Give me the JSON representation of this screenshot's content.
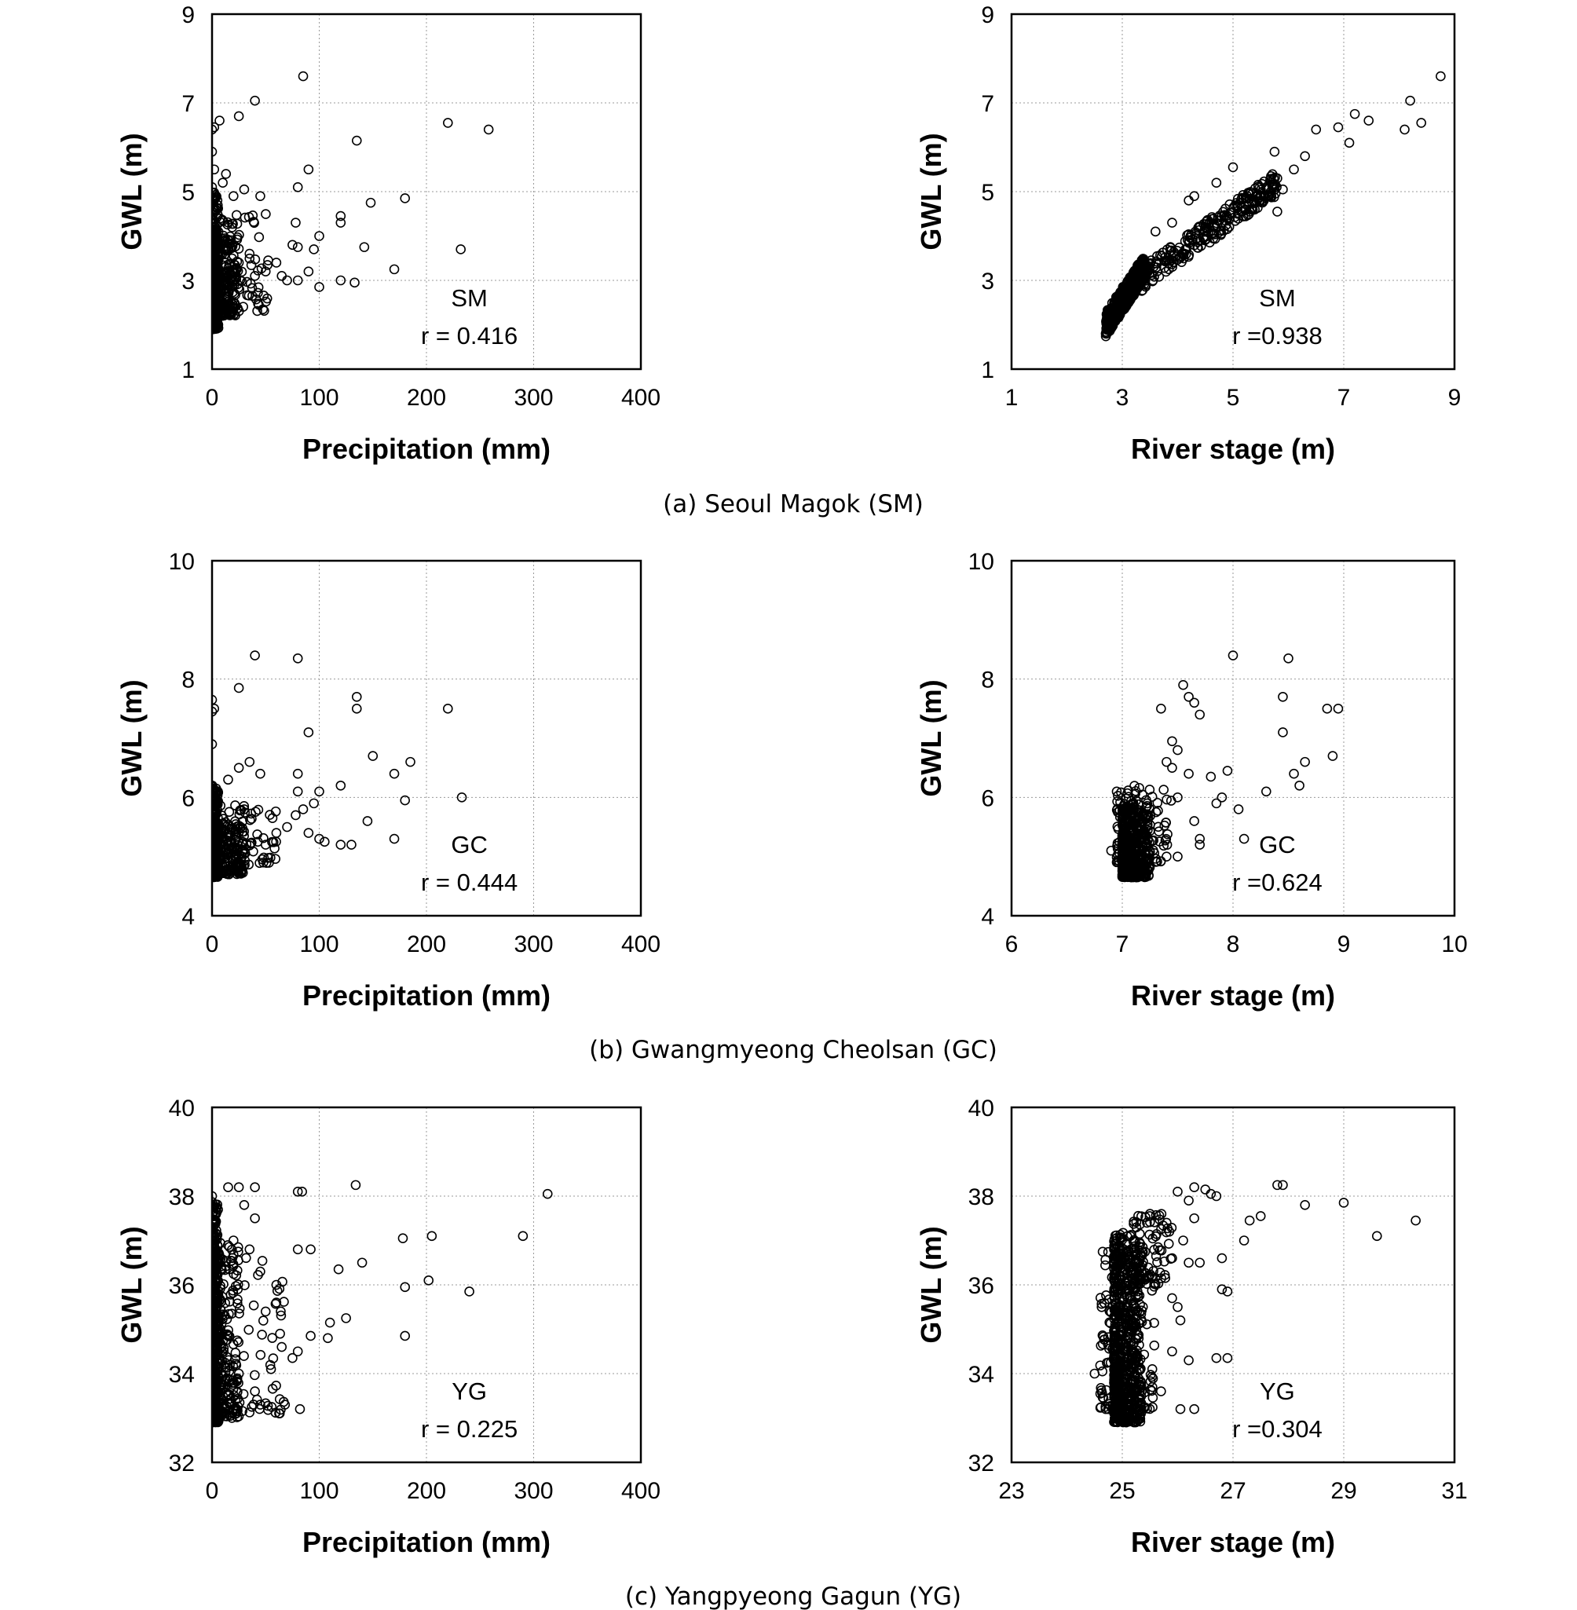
{
  "captions": [
    "(a) Seoul Magok (SM)",
    "(b) Gwangmyeong Cheolsan (GC)",
    "(c) Yangpyeong Gagun (YG)"
  ],
  "chart_data": [
    {
      "id": "sm-precip",
      "type": "scatter",
      "xlabel": "Precipitation (mm)",
      "ylabel": "GWL (m)",
      "xlim": [
        0,
        400
      ],
      "ylim": [
        1,
        9
      ],
      "xticks": [
        0,
        100,
        200,
        300,
        400
      ],
      "yticks": [
        1,
        3,
        5,
        7,
        9
      ],
      "grid": true,
      "station": "SM",
      "r_label": "r = 0.416",
      "points": [
        [
          85,
          7.6
        ],
        [
          40,
          7.05
        ],
        [
          25,
          6.7
        ],
        [
          7,
          6.6
        ],
        [
          0,
          6.4
        ],
        [
          2,
          6.45
        ],
        [
          220,
          6.55
        ],
        [
          258,
          6.4
        ],
        [
          135,
          6.15
        ],
        [
          90,
          5.5
        ],
        [
          0,
          5.9
        ],
        [
          2,
          5.5
        ],
        [
          0,
          5.1
        ],
        [
          10,
          5.2
        ],
        [
          13,
          5.4
        ],
        [
          80,
          5.1
        ],
        [
          180,
          4.85
        ],
        [
          148,
          4.75
        ],
        [
          5,
          4.8
        ],
        [
          20,
          4.9
        ],
        [
          30,
          5.05
        ],
        [
          45,
          4.9
        ],
        [
          120,
          4.45
        ],
        [
          120,
          4.3
        ],
        [
          78,
          4.3
        ],
        [
          100,
          4.0
        ],
        [
          95,
          3.7
        ],
        [
          142,
          3.75
        ],
        [
          232,
          3.7
        ],
        [
          75,
          3.8
        ],
        [
          80,
          3.75
        ],
        [
          170,
          3.25
        ],
        [
          120,
          3.0
        ],
        [
          133,
          2.95
        ],
        [
          100,
          2.85
        ],
        [
          60,
          3.4
        ],
        [
          65,
          3.1
        ],
        [
          70,
          3.0
        ],
        [
          80,
          3.0
        ],
        [
          90,
          3.2
        ],
        [
          50,
          3.2
        ],
        [
          35,
          3.6
        ],
        [
          25,
          3.4
        ],
        [
          40,
          3.1
        ],
        [
          15,
          3.1
        ],
        [
          5,
          3.0
        ],
        [
          0,
          4.3
        ],
        [
          0,
          3.6
        ]
      ],
      "dense_clusters": [
        {
          "x": [
            0,
            6
          ],
          "y": [
            1.9,
            5.0
          ],
          "count": 260
        },
        {
          "x": [
            0,
            25
          ],
          "y": [
            2.2,
            4.0
          ],
          "count": 230
        },
        {
          "x": [
            0,
            55
          ],
          "y": [
            2.3,
            4.6
          ],
          "count": 110
        }
      ]
    },
    {
      "id": "sm-river",
      "type": "scatter",
      "xlabel": "River stage (m)",
      "ylabel": "GWL (m)",
      "xlim": [
        1,
        9
      ],
      "ylim": [
        1,
        9
      ],
      "xticks": [
        1,
        3,
        5,
        7,
        9
      ],
      "yticks": [
        1,
        3,
        5,
        7,
        9
      ],
      "grid": true,
      "station": "SM",
      "r_label": "r =0.938",
      "points": [
        [
          8.75,
          7.6
        ],
        [
          8.2,
          7.05
        ],
        [
          8.4,
          6.55
        ],
        [
          8.1,
          6.4
        ],
        [
          7.2,
          6.75
        ],
        [
          7.45,
          6.6
        ],
        [
          6.9,
          6.45
        ],
        [
          6.5,
          6.4
        ],
        [
          7.1,
          6.1
        ],
        [
          5.75,
          5.9
        ],
        [
          6.3,
          5.8
        ],
        [
          6.1,
          5.5
        ],
        [
          5.0,
          5.55
        ],
        [
          5.8,
          5.3
        ],
        [
          4.7,
          5.2
        ],
        [
          5.9,
          5.05
        ],
        [
          5.8,
          4.55
        ],
        [
          4.3,
          4.9
        ],
        [
          4.2,
          4.8
        ],
        [
          5.5,
          4.8
        ],
        [
          4.5,
          4.2
        ],
        [
          3.6,
          4.1
        ],
        [
          3.9,
          4.3
        ]
      ],
      "dense_clusters": [
        {
          "band": true,
          "x": [
            2.7,
            3.4
          ],
          "y": [
            2.0,
            3.3
          ],
          "slope": 1.0,
          "count": 420
        },
        {
          "band": true,
          "x": [
            3.2,
            5.8
          ],
          "y": [
            2.9,
            5.2
          ],
          "slope": 0.92,
          "count": 260
        }
      ]
    },
    {
      "id": "gc-precip",
      "type": "scatter",
      "xlabel": "Precipitation (mm)",
      "ylabel": "GWL (m)",
      "xlim": [
        0,
        400
      ],
      "ylim": [
        4,
        10
      ],
      "xticks": [
        0,
        100,
        200,
        300,
        400
      ],
      "yticks": [
        4,
        6,
        8,
        10
      ],
      "grid": true,
      "station": "GC",
      "r_label": "r = 0.444",
      "points": [
        [
          40,
          8.4
        ],
        [
          80,
          8.35
        ],
        [
          25,
          7.85
        ],
        [
          0,
          7.65
        ],
        [
          0,
          7.45
        ],
        [
          2,
          7.5
        ],
        [
          135,
          7.7
        ],
        [
          135,
          7.5
        ],
        [
          220,
          7.5
        ],
        [
          90,
          7.1
        ],
        [
          0,
          6.9
        ],
        [
          150,
          6.7
        ],
        [
          170,
          6.4
        ],
        [
          185,
          6.6
        ],
        [
          80,
          6.4
        ],
        [
          35,
          6.6
        ],
        [
          25,
          6.5
        ],
        [
          45,
          6.4
        ],
        [
          120,
          6.2
        ],
        [
          100,
          6.1
        ],
        [
          80,
          6.1
        ],
        [
          233,
          6.0
        ],
        [
          180,
          5.95
        ],
        [
          95,
          5.9
        ],
        [
          78,
          5.7
        ],
        [
          85,
          5.8
        ],
        [
          145,
          5.6
        ],
        [
          90,
          5.4
        ],
        [
          100,
          5.3
        ],
        [
          105,
          5.25
        ],
        [
          120,
          5.2
        ],
        [
          130,
          5.2
        ],
        [
          170,
          5.3
        ],
        [
          60,
          5.4
        ],
        [
          70,
          5.5
        ],
        [
          50,
          5.2
        ],
        [
          30,
          5.8
        ],
        [
          15,
          6.3
        ]
      ],
      "dense_clusters": [
        {
          "x": [
            0,
            6
          ],
          "y": [
            4.65,
            6.2
          ],
          "count": 240
        },
        {
          "x": [
            0,
            30
          ],
          "y": [
            4.7,
            5.6
          ],
          "count": 220
        },
        {
          "x": [
            0,
            60
          ],
          "y": [
            4.85,
            5.9
          ],
          "count": 90
        }
      ]
    },
    {
      "id": "gc-river",
      "type": "scatter",
      "xlabel": "River stage (m)",
      "ylabel": "GWL (m)",
      "xlim": [
        6,
        10
      ],
      "ylim": [
        4,
        10
      ],
      "xticks": [
        6,
        7,
        8,
        9,
        10
      ],
      "yticks": [
        4,
        6,
        8,
        10
      ],
      "grid": true,
      "station": "GC",
      "r_label": "r =0.624",
      "points": [
        [
          8.0,
          8.4
        ],
        [
          8.5,
          8.35
        ],
        [
          7.55,
          7.9
        ],
        [
          7.6,
          7.7
        ],
        [
          7.65,
          7.6
        ],
        [
          8.45,
          7.7
        ],
        [
          8.85,
          7.5
        ],
        [
          8.95,
          7.5
        ],
        [
          7.7,
          7.4
        ],
        [
          7.35,
          7.5
        ],
        [
          8.45,
          7.1
        ],
        [
          8.9,
          6.7
        ],
        [
          7.45,
          6.95
        ],
        [
          7.5,
          6.8
        ],
        [
          7.4,
          6.6
        ],
        [
          8.65,
          6.6
        ],
        [
          8.55,
          6.4
        ],
        [
          7.95,
          6.45
        ],
        [
          7.6,
          6.4
        ],
        [
          7.8,
          6.35
        ],
        [
          8.6,
          6.2
        ],
        [
          8.3,
          6.1
        ],
        [
          7.9,
          6.0
        ],
        [
          7.85,
          5.9
        ],
        [
          8.05,
          5.8
        ],
        [
          7.65,
          5.6
        ],
        [
          7.7,
          5.3
        ],
        [
          8.1,
          5.3
        ],
        [
          7.7,
          5.2
        ],
        [
          7.5,
          5.0
        ],
        [
          7.4,
          5.0
        ],
        [
          6.9,
          5.1
        ],
        [
          7.0,
          5.05
        ],
        [
          7.5,
          6.0
        ],
        [
          7.45,
          6.5
        ]
      ],
      "dense_clusters": [
        {
          "x": [
            7.0,
            7.25
          ],
          "y": [
            4.65,
            5.9
          ],
          "count": 420
        },
        {
          "x": [
            6.95,
            7.45
          ],
          "y": [
            4.9,
            6.2
          ],
          "count": 110
        }
      ]
    },
    {
      "id": "yg-precip",
      "type": "scatter",
      "xlabel": "Precipitation (mm)",
      "ylabel": "GWL (m)",
      "xlim": [
        0,
        400
      ],
      "ylim": [
        32,
        40
      ],
      "xticks": [
        0,
        100,
        200,
        300,
        400
      ],
      "yticks": [
        32,
        34,
        36,
        38,
        40
      ],
      "grid": true,
      "station": "YG",
      "r_label": "r = 0.225",
      "points": [
        [
          134,
          38.25
        ],
        [
          313,
          38.05
        ],
        [
          80,
          38.1
        ],
        [
          84,
          38.1
        ],
        [
          40,
          38.2
        ],
        [
          25,
          38.2
        ],
        [
          15,
          38.2
        ],
        [
          0,
          38.0
        ],
        [
          205,
          37.1
        ],
        [
          178,
          37.05
        ],
        [
          290,
          37.1
        ],
        [
          80,
          36.8
        ],
        [
          92,
          36.8
        ],
        [
          140,
          36.5
        ],
        [
          118,
          36.35
        ],
        [
          202,
          36.1
        ],
        [
          180,
          35.95
        ],
        [
          240,
          35.85
        ],
        [
          125,
          35.25
        ],
        [
          110,
          35.15
        ],
        [
          108,
          34.8
        ],
        [
          180,
          34.85
        ],
        [
          92,
          34.85
        ],
        [
          80,
          34.5
        ],
        [
          75,
          34.35
        ],
        [
          65,
          34.6
        ],
        [
          82,
          33.2
        ],
        [
          68,
          33.3
        ],
        [
          45,
          33.3
        ],
        [
          55,
          34.1
        ],
        [
          60,
          35.6
        ],
        [
          50,
          35.4
        ],
        [
          45,
          36.3
        ],
        [
          60,
          36.0
        ],
        [
          30,
          37.8
        ],
        [
          40,
          37.5
        ],
        [
          20,
          37.0
        ],
        [
          35,
          36.8
        ],
        [
          25,
          34.0
        ],
        [
          40,
          33.6
        ]
      ],
      "dense_clusters": [
        {
          "x": [
            0,
            6
          ],
          "y": [
            32.9,
            37.9
          ],
          "count": 360
        },
        {
          "x": [
            0,
            25
          ],
          "y": [
            33.0,
            37.0
          ],
          "count": 220
        },
        {
          "x": [
            0,
            70
          ],
          "y": [
            33.1,
            36.8
          ],
          "count": 110
        }
      ]
    },
    {
      "id": "yg-river",
      "type": "scatter",
      "xlabel": "River stage (m)",
      "ylabel": "GWL (m)",
      "xlim": [
        23,
        31
      ],
      "ylim": [
        32,
        40
      ],
      "xticks": [
        23,
        25,
        27,
        29,
        31
      ],
      "yticks": [
        32,
        34,
        36,
        38,
        40
      ],
      "grid": true,
      "station": "YG",
      "r_label": "r =0.304",
      "points": [
        [
          27.8,
          38.25
        ],
        [
          27.9,
          38.25
        ],
        [
          29.0,
          37.85
        ],
        [
          28.3,
          37.8
        ],
        [
          30.3,
          37.45
        ],
        [
          29.6,
          37.1
        ],
        [
          27.3,
          37.45
        ],
        [
          27.5,
          37.55
        ],
        [
          27.2,
          37.0
        ],
        [
          26.3,
          38.2
        ],
        [
          26.5,
          38.15
        ],
        [
          26.6,
          38.05
        ],
        [
          26.7,
          38.0
        ],
        [
          26.0,
          38.1
        ],
        [
          26.2,
          37.9
        ],
        [
          26.3,
          37.5
        ],
        [
          26.1,
          37.0
        ],
        [
          25.9,
          36.6
        ],
        [
          26.4,
          36.5
        ],
        [
          26.2,
          36.5
        ],
        [
          26.8,
          36.6
        ],
        [
          26.9,
          35.85
        ],
        [
          26.8,
          35.9
        ],
        [
          25.9,
          35.7
        ],
        [
          26.0,
          35.5
        ],
        [
          26.05,
          35.2
        ],
        [
          25.9,
          34.5
        ],
        [
          26.7,
          34.35
        ],
        [
          26.9,
          34.35
        ],
        [
          26.2,
          34.3
        ],
        [
          26.05,
          33.2
        ],
        [
          26.3,
          33.2
        ],
        [
          25.7,
          33.6
        ],
        [
          25.5,
          37.6
        ],
        [
          25.8,
          37.4
        ],
        [
          24.5,
          34.0
        ],
        [
          24.7,
          33.2
        ]
      ],
      "dense_clusters": [
        {
          "x": [
            24.85,
            25.35
          ],
          "y": [
            32.9,
            37.2
          ],
          "count": 620
        },
        {
          "x": [
            24.6,
            25.6
          ],
          "y": [
            33.2,
            36.8
          ],
          "count": 160
        },
        {
          "x": [
            25.2,
            25.9
          ],
          "y": [
            36.0,
            37.6
          ],
          "count": 90
        }
      ]
    }
  ]
}
